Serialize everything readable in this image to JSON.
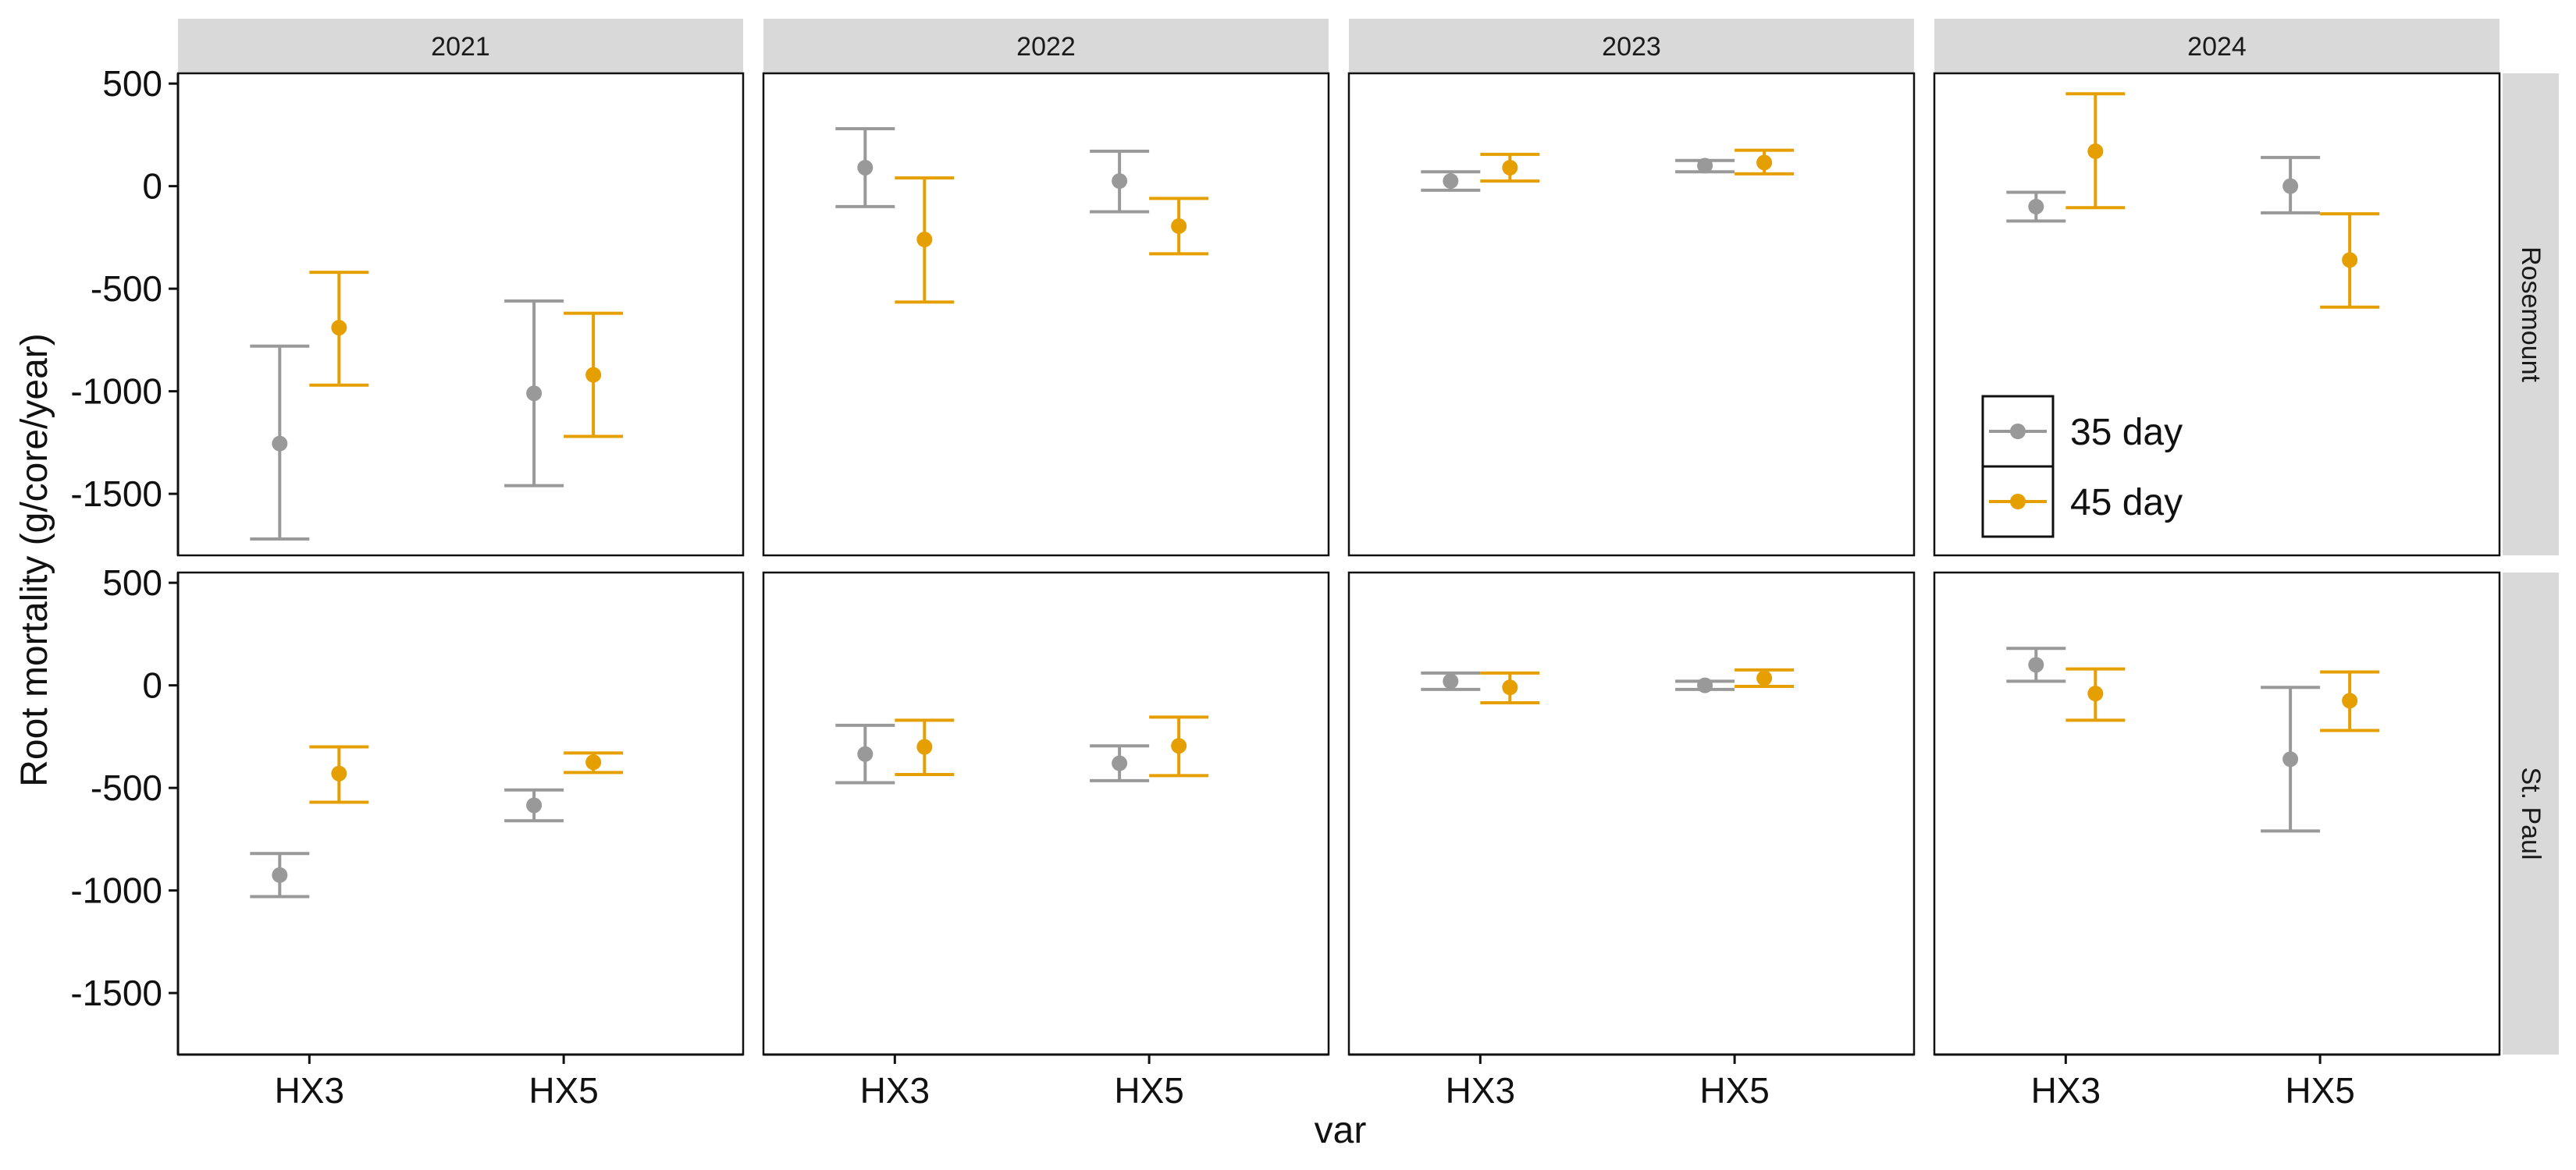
{
  "chart_data": {
    "type": "scatter",
    "subtype": "point-with-error-bars, faceted grid",
    "xlabel": "var",
    "ylabel": "Root mortality (g/core/year)",
    "categories": [
      "HX3",
      "HX5"
    ],
    "ylim": [
      -1800,
      550
    ],
    "yticks": [
      500,
      0,
      -500,
      -1000,
      -1500
    ],
    "col_facets": [
      "2021",
      "2022",
      "2023",
      "2024"
    ],
    "row_facets": [
      "Rosemount",
      "St. Paul"
    ],
    "legend": {
      "placement": "inside bottom-left of Rosemount 2024 panel",
      "entries": [
        {
          "label": "35 day",
          "color": "#999999"
        },
        {
          "label": "45 day",
          "color": "#E69F00"
        }
      ]
    },
    "series": [
      {
        "name": "35 day",
        "color": "#999999"
      },
      {
        "name": "45 day",
        "color": "#E69F00"
      }
    ],
    "panels": [
      {
        "col": "2021",
        "row": "Rosemount",
        "points": [
          {
            "var": "HX3",
            "series": "35 day",
            "mean": -1255,
            "low": -1720,
            "high": -780
          },
          {
            "var": "HX3",
            "series": "45 day",
            "mean": -690,
            "low": -970,
            "high": -420
          },
          {
            "var": "HX5",
            "series": "35 day",
            "mean": -1010,
            "low": -1460,
            "high": -560
          },
          {
            "var": "HX5",
            "series": "45 day",
            "mean": -920,
            "low": -1220,
            "high": -620
          }
        ]
      },
      {
        "col": "2022",
        "row": "Rosemount",
        "points": [
          {
            "var": "HX3",
            "series": "35 day",
            "mean": 90,
            "low": -100,
            "high": 280
          },
          {
            "var": "HX3",
            "series": "45 day",
            "mean": -260,
            "low": -565,
            "high": 40
          },
          {
            "var": "HX5",
            "series": "35 day",
            "mean": 25,
            "low": -125,
            "high": 170
          },
          {
            "var": "HX5",
            "series": "45 day",
            "mean": -195,
            "low": -330,
            "high": -60
          }
        ]
      },
      {
        "col": "2023",
        "row": "Rosemount",
        "points": [
          {
            "var": "HX3",
            "series": "35 day",
            "mean": 25,
            "low": -20,
            "high": 70
          },
          {
            "var": "HX3",
            "series": "45 day",
            "mean": 90,
            "low": 25,
            "high": 155
          },
          {
            "var": "HX5",
            "series": "35 day",
            "mean": 100,
            "low": 70,
            "high": 125
          },
          {
            "var": "HX5",
            "series": "45 day",
            "mean": 115,
            "low": 60,
            "high": 175
          }
        ]
      },
      {
        "col": "2024",
        "row": "Rosemount",
        "points": [
          {
            "var": "HX3",
            "series": "35 day",
            "mean": -100,
            "low": -170,
            "high": -30
          },
          {
            "var": "HX3",
            "series": "45 day",
            "mean": 170,
            "low": -105,
            "high": 450
          },
          {
            "var": "HX5",
            "series": "35 day",
            "mean": 0,
            "low": -130,
            "high": 140
          },
          {
            "var": "HX5",
            "series": "45 day",
            "mean": -360,
            "low": -590,
            "high": -135
          }
        ]
      },
      {
        "col": "2021",
        "row": "St. Paul",
        "points": [
          {
            "var": "HX3",
            "series": "35 day",
            "mean": -925,
            "low": -1030,
            "high": -820
          },
          {
            "var": "HX3",
            "series": "45 day",
            "mean": -430,
            "low": -570,
            "high": -300
          },
          {
            "var": "HX5",
            "series": "35 day",
            "mean": -585,
            "low": -660,
            "high": -510
          },
          {
            "var": "HX5",
            "series": "45 day",
            "mean": -375,
            "low": -425,
            "high": -330
          }
        ]
      },
      {
        "col": "2022",
        "row": "St. Paul",
        "points": [
          {
            "var": "HX3",
            "series": "35 day",
            "mean": -335,
            "low": -475,
            "high": -195
          },
          {
            "var": "HX3",
            "series": "45 day",
            "mean": -300,
            "low": -435,
            "high": -170
          },
          {
            "var": "HX5",
            "series": "35 day",
            "mean": -380,
            "low": -465,
            "high": -295
          },
          {
            "var": "HX5",
            "series": "45 day",
            "mean": -295,
            "low": -440,
            "high": -155
          }
        ]
      },
      {
        "col": "2023",
        "row": "St. Paul",
        "points": [
          {
            "var": "HX3",
            "series": "35 day",
            "mean": 20,
            "low": -20,
            "high": 60
          },
          {
            "var": "HX3",
            "series": "45 day",
            "mean": -10,
            "low": -85,
            "high": 60
          },
          {
            "var": "HX5",
            "series": "35 day",
            "mean": 0,
            "low": -20,
            "high": 20
          },
          {
            "var": "HX5",
            "series": "45 day",
            "mean": 35,
            "low": -5,
            "high": 75
          }
        ]
      },
      {
        "col": "2024",
        "row": "St. Paul",
        "points": [
          {
            "var": "HX3",
            "series": "35 day",
            "mean": 100,
            "low": 20,
            "high": 180
          },
          {
            "var": "HX3",
            "series": "45 day",
            "mean": -40,
            "low": -170,
            "high": 80
          },
          {
            "var": "HX5",
            "series": "35 day",
            "mean": -360,
            "low": -710,
            "high": -10
          },
          {
            "var": "HX5",
            "series": "45 day",
            "mean": -75,
            "low": -220,
            "high": 65
          }
        ]
      }
    ]
  }
}
